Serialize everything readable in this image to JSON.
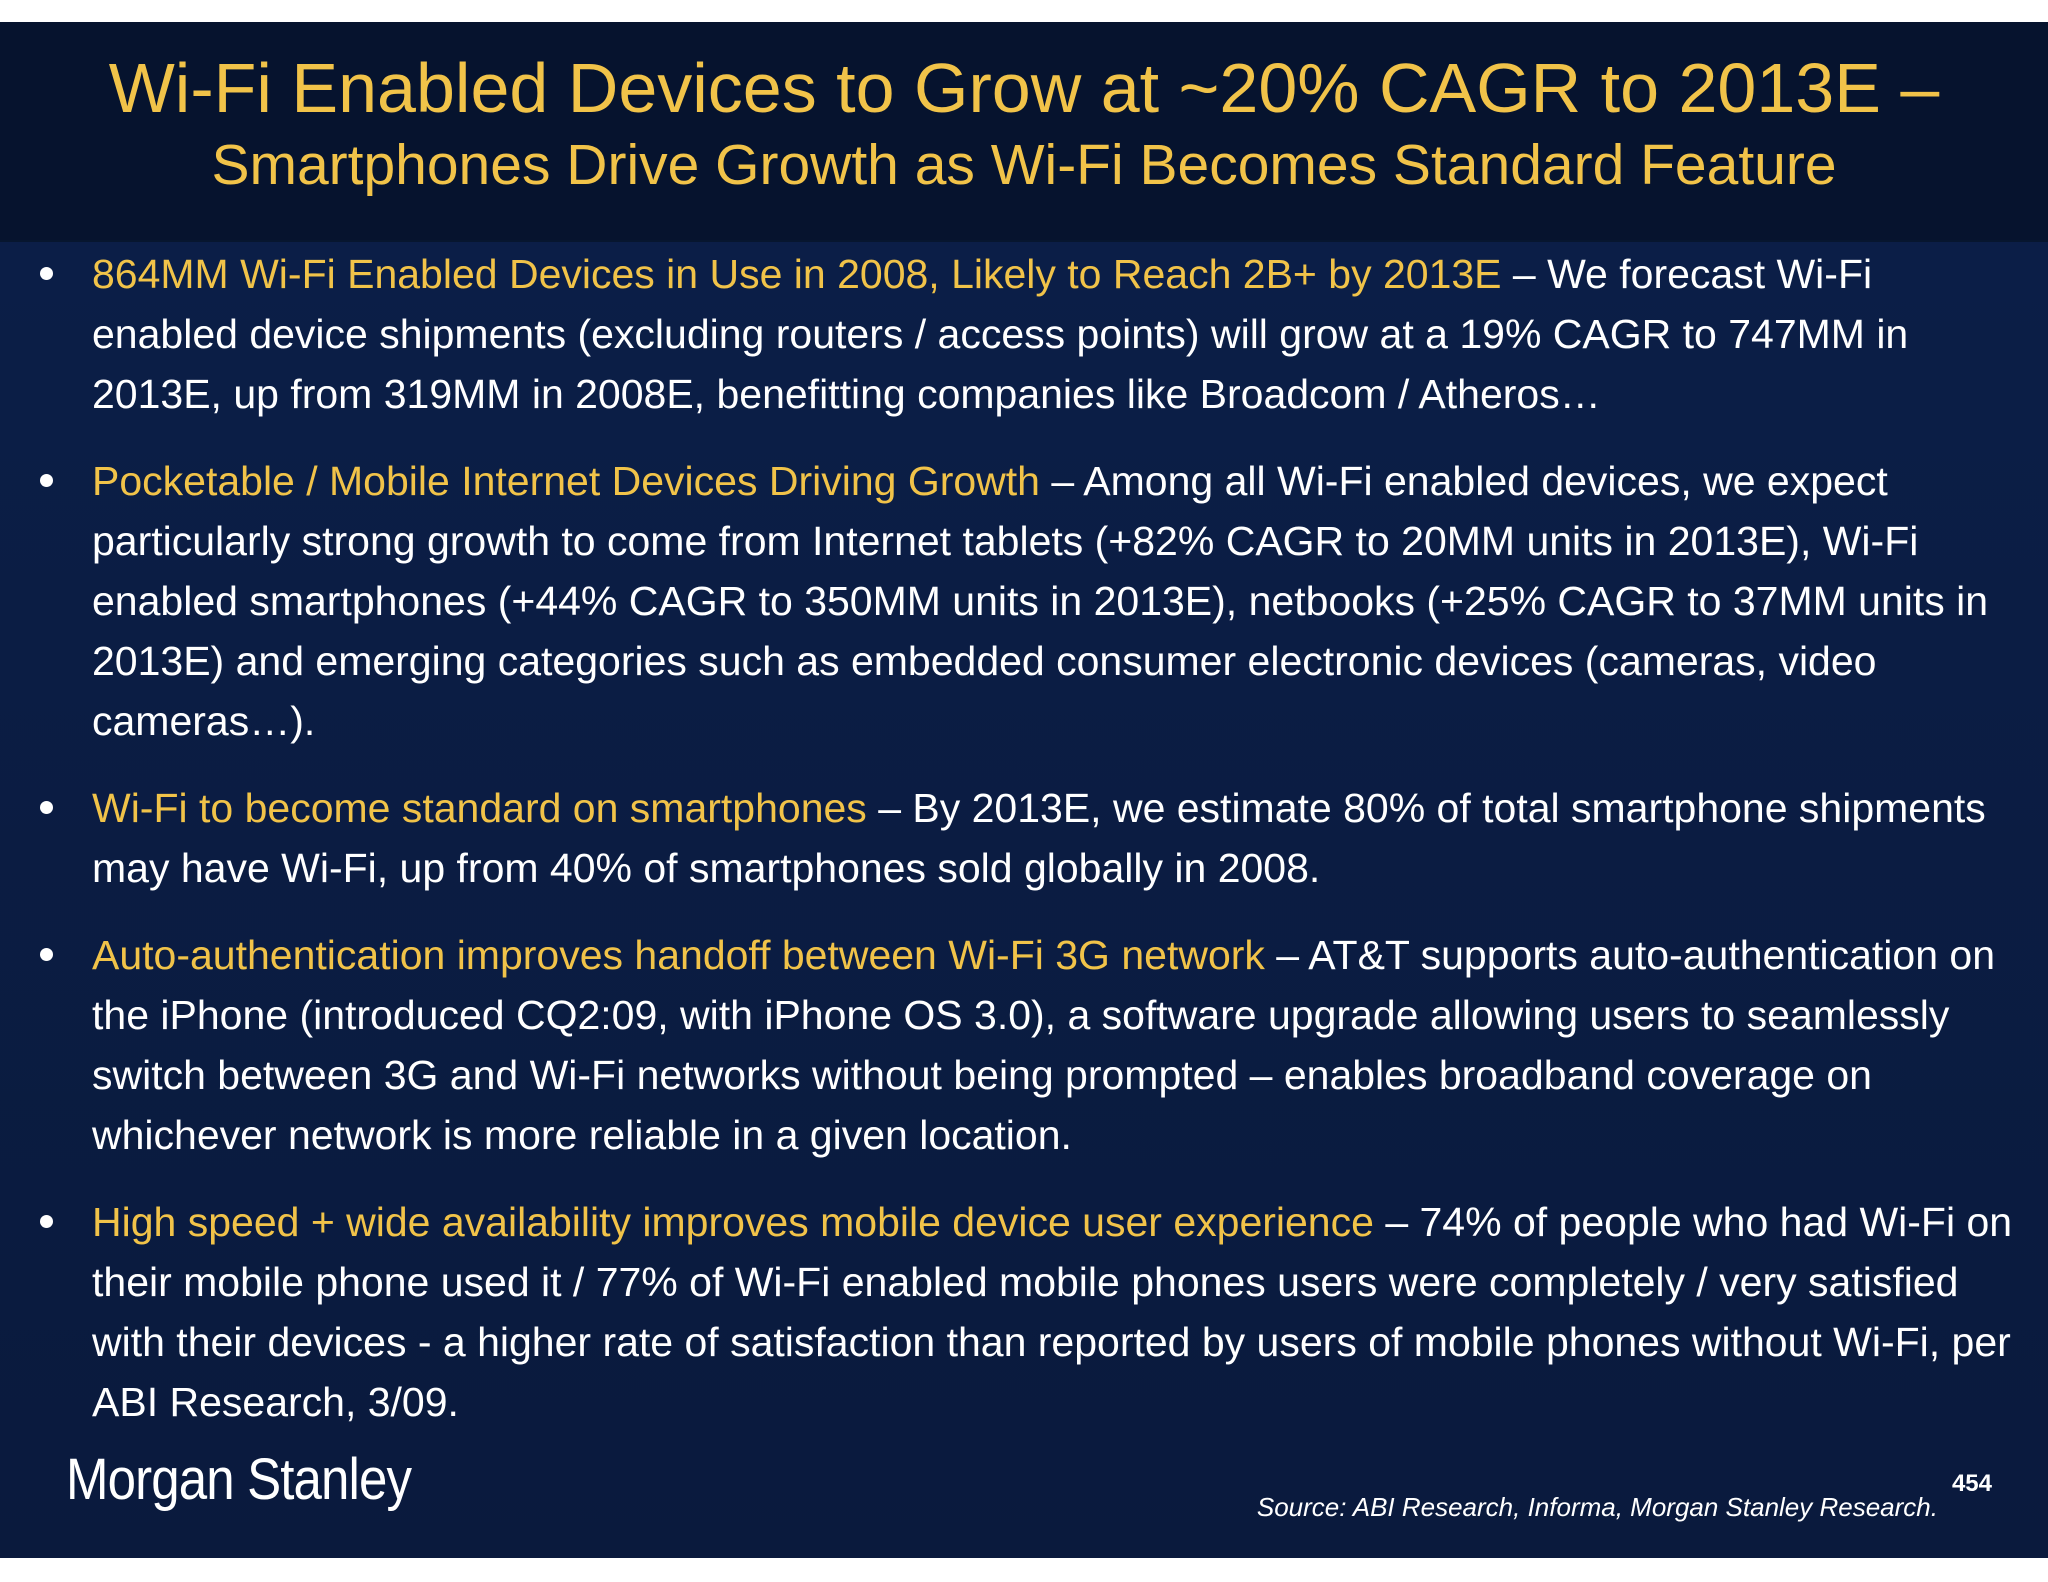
{
  "title": {
    "line1": "Wi-Fi Enabled Devices to Grow at ~20% CAGR to 2013E –",
    "line2": "Smartphones Drive Growth as Wi-Fi Becomes Standard Feature"
  },
  "bullets": [
    {
      "heading": "864MM Wi-Fi Enabled Devices in Use in 2008, Likely to Reach 2B+ by 2013E",
      "body": " – We forecast Wi-Fi enabled device shipments (excluding routers / access points) will grow at a 19% CAGR to 747MM in 2013E, up from 319MM in 2008E, benefitting companies like Broadcom / Atheros…"
    },
    {
      "heading": "Pocketable / Mobile Internet Devices Driving Growth",
      "body": " – Among all Wi-Fi enabled devices, we expect particularly strong growth to come from Internet tablets (+82% CAGR to 20MM units in 2013E), Wi-Fi enabled smartphones (+44% CAGR to 350MM units in 2013E), netbooks (+25% CAGR to 37MM units in 2013E) and emerging categories such as embedded consumer electronic devices (cameras, video cameras…)."
    },
    {
      "heading": "Wi-Fi to become standard on smartphones",
      "body": " – By 2013E, we estimate 80% of total smartphone shipments may have Wi-Fi, up from 40% of smartphones sold globally in 2008."
    },
    {
      "heading": "Auto-authentication improves handoff between Wi-Fi 3G network",
      "body": " – AT&T supports auto-authentication on the iPhone (introduced CQ2:09, with iPhone OS 3.0), a software upgrade allowing users to seamlessly switch between 3G and Wi-Fi networks without being prompted – enables broadband coverage on whichever network is more reliable in a given location."
    },
    {
      "heading": "High speed + wide availability improves mobile device user experience",
      "body": " – 74% of people who had Wi-Fi on their mobile phone used it / 77% of Wi-Fi enabled mobile phones users were completely / very satisfied with their devices - a higher rate of satisfaction than reported by users of mobile phones without Wi-Fi, per ABI Research, 3/09."
    }
  ],
  "footer": {
    "brand": "Morgan Stanley",
    "source": "Source: ABI Research, Informa, Morgan Stanley Research.",
    "page_number": "454"
  },
  "colors": {
    "background": "#0b1d44",
    "title_bar": "#06132e",
    "accent": "#f1c349",
    "text": "#ffffff"
  }
}
